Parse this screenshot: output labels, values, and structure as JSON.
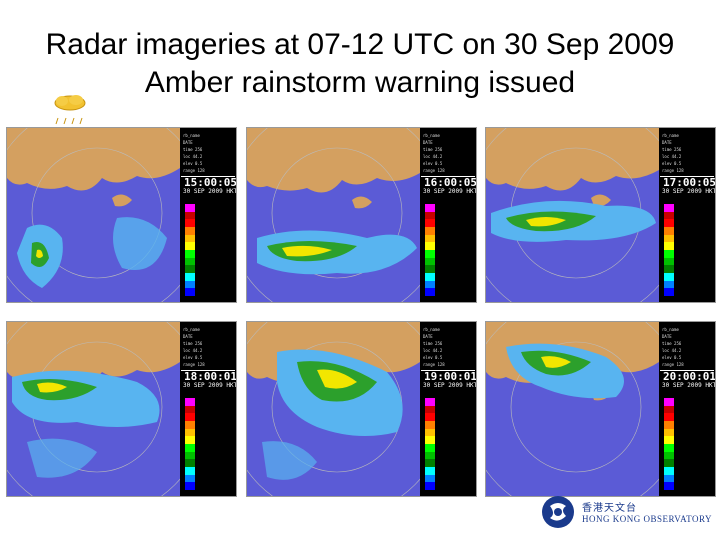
{
  "title_line1": "Radar imageries at 07-12 UTC on 30 Sep 2009",
  "title_line2": "Amber rainstorm warning issued",
  "warning_icon": {
    "name": "amber-rainstorm-warning-icon",
    "color": "#f2c230"
  },
  "panels": [
    {
      "time": "15:00:05",
      "date": "30 SEP 2009 HKT"
    },
    {
      "time": "16:00:05",
      "date": "30 SEP 2009 HKT"
    },
    {
      "time": "17:00:05",
      "date": "30 SEP 2009 HKT"
    },
    {
      "time": "18:00:01",
      "date": "30 SEP 2009 HKT"
    },
    {
      "time": "19:00:01",
      "date": "30 SEP 2009 HKT"
    },
    {
      "time": "20:00:01",
      "date": "30 SEP 2009 HKT"
    }
  ],
  "logo": {
    "name_zh": "香港天文台",
    "name_en": "HONG KONG OBSERVATORY"
  },
  "colors": {
    "sea": "#5b5bd6",
    "land": "#d4a060",
    "rain_light": "#58b4f0",
    "rain_medium": "#2ca02c",
    "rain_heavy": "#f2e600"
  }
}
